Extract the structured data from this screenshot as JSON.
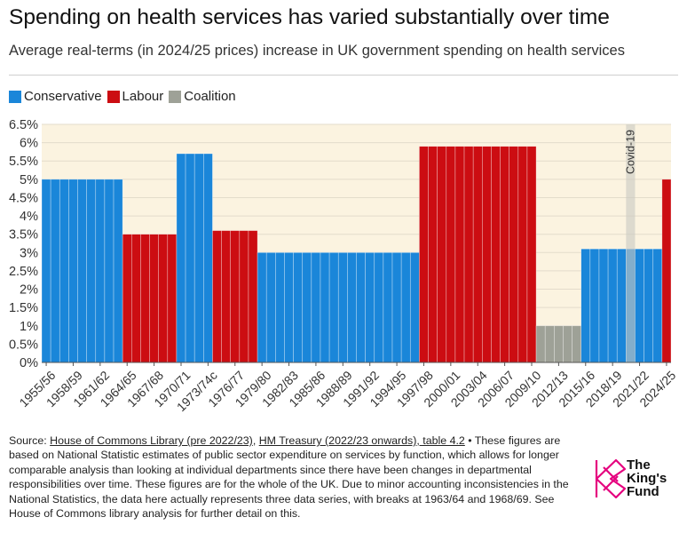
{
  "header": {
    "title": "Spending on health services has varied substantially over time",
    "subtitle": "Average real-terms (in 2024/25 prices) increase in UK government spending on health services"
  },
  "legend": [
    {
      "label": "Conservative",
      "color": "#1a86d9"
    },
    {
      "label": "Labour",
      "color": "#cc0d12"
    },
    {
      "label": "Coalition",
      "color": "#9ea197"
    }
  ],
  "chart_data": {
    "type": "bar",
    "title": "Spending on health services has varied substantially over time",
    "subtitle": "Average real-terms (in 2024/25 prices) increase in UK government spending on health services",
    "xlabel": "",
    "ylabel": "",
    "ylim": [
      0,
      6.5
    ],
    "yticks": [
      "0%",
      "0.5%",
      "1%",
      "1.5%",
      "2%",
      "2.5%",
      "3%",
      "3.5%",
      "4%",
      "4.5%",
      "5%",
      "5.5%",
      "6%",
      "6.5%"
    ],
    "xtick_labels": [
      "1955/56",
      "1958/59",
      "1961/62",
      "1964/65",
      "1967/68",
      "1970/71",
      "1973/74c",
      "1976/77",
      "1979/80",
      "1982/83",
      "1985/86",
      "1988/89",
      "1991/92",
      "1994/95",
      "1997/98",
      "2000/01",
      "2003/04",
      "2006/07",
      "2009/10",
      "2012/13",
      "2015/16",
      "2018/19",
      "2021/22",
      "2024/25"
    ],
    "grid": true,
    "legend_position": "top-left",
    "colors": {
      "Conservative": "#1a86d9",
      "Labour": "#cc0d12",
      "Coalition": "#9ea197"
    },
    "bars": [
      {
        "party": "Conservative",
        "value": 5.0,
        "from_year": 1955,
        "to_year": 1964
      },
      {
        "party": "Labour",
        "value": 3.5,
        "from_year": 1964,
        "to_year": 1970
      },
      {
        "party": "Conservative",
        "value": 5.7,
        "from_year": 1970,
        "to_year": 1974
      },
      {
        "party": "Labour",
        "value": 3.6,
        "from_year": 1974,
        "to_year": 1979
      },
      {
        "party": "Conservative",
        "value": 3.0,
        "from_year": 1979,
        "to_year": 1997
      },
      {
        "party": "Labour",
        "value": 5.9,
        "from_year": 1997,
        "to_year": 2010
      },
      {
        "party": "Coalition",
        "value": 1.0,
        "from_year": 2010,
        "to_year": 2015
      },
      {
        "party": "Conservative",
        "value": 3.1,
        "from_year": 2015,
        "to_year": 2024
      },
      {
        "party": "Labour",
        "value": 5.0,
        "from_year": 2024,
        "to_year": 2025
      }
    ],
    "annotations": [
      {
        "text": "Covid-19",
        "from_year": 2020,
        "to_year": 2021
      }
    ]
  },
  "footer": {
    "source_prefix": "Source: ",
    "link1": "House of Commons Library (pre 2022/23)",
    "sep": ", ",
    "link2": "HM Treasury (2022/23 onwards), table 4.2",
    "body": " • These figures are based on National Statistic estimates of public sector expenditure on services by function, which allows for longer comparable analysis than looking at individual departments since there have been changes in departmental responsibilities over time. These figures are for the whole of the UK. Due to minor accounting inconsistencies in the National Statistics, the data here actually represents three data series, with breaks at 1963/64 and 1968/69. See House of Commons library analysis for further detail on this."
  },
  "logo": {
    "line1": "The",
    "line2": "King's",
    "line3": "Fund",
    "color": "#e5007e"
  }
}
